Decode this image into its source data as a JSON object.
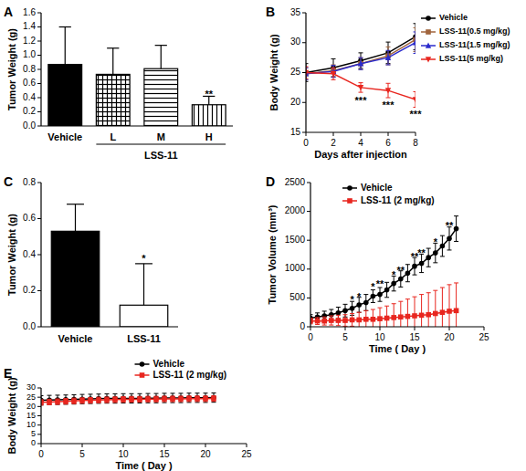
{
  "chart_data": [
    {
      "type": "bar",
      "title": "A",
      "ylabel": "Tumor Weight (g)",
      "categories": [
        "Vehicle",
        "L",
        "M",
        "H"
      ],
      "values": [
        0.87,
        0.73,
        0.81,
        0.3
      ],
      "errors": [
        0.53,
        0.37,
        0.33,
        0.12
      ],
      "colors": [
        "#000000",
        "#000000",
        "#000000",
        "#000000"
      ],
      "groups": [
        {
          "label": "LSS-11",
          "categories": [
            "L",
            "M",
            "H"
          ]
        }
      ],
      "ylim": [
        0,
        1.6
      ],
      "yticks": [
        {
          "value": 0,
          "label": "0.0"
        },
        0.2,
        0.4,
        0.6,
        0.8,
        {
          "value": 1,
          "label": "1.0"
        },
        1.2,
        1.4,
        1.6
      ],
      "annotations": [
        {
          "category": "H",
          "y": 0.47,
          "text": "**"
        }
      ],
      "grid": false
    },
    {
      "type": "line",
      "title": "B",
      "xlabel": "Days after injection",
      "ylabel": "Body Weight (g)",
      "x": [
        0,
        2,
        4,
        6,
        8
      ],
      "xlim": [
        0,
        8
      ],
      "xticks": [
        0,
        2,
        4,
        6,
        8
      ],
      "ylim": [
        15,
        35
      ],
      "yticks": [
        15,
        20,
        25,
        30,
        35
      ],
      "series": [
        {
          "name": "Vehicle",
          "color": "#000000",
          "marker": "circle",
          "values": [
            25,
            25.8,
            27,
            28.3,
            31
          ],
          "errors": [
            1.5,
            1.5,
            1.3,
            1.8,
            2.2
          ]
        },
        {
          "name": "LSS-11(0.5 mg/kg)",
          "color": "#a0643c",
          "marker": "square",
          "values": [
            24.8,
            25.3,
            26.5,
            27.8,
            30.5
          ],
          "errors": [
            1,
            1,
            1,
            1.5,
            2
          ]
        },
        {
          "name": "LSS-11(1.5 mg/kg)",
          "color": "#2b2bcc",
          "marker": "triangle",
          "values": [
            24.8,
            25.2,
            26.5,
            27.5,
            30
          ],
          "errors": [
            1,
            1,
            1,
            1.2,
            1.8
          ]
        },
        {
          "name": "LSS-11(5 mg/kg)",
          "color": "#e8261f",
          "marker": "triangle-down",
          "values": [
            25,
            24.8,
            22.5,
            22,
            20.5
          ],
          "errors": [
            1,
            1,
            0.8,
            1.2,
            1.3
          ]
        }
      ],
      "legend": "right",
      "annotations": [
        {
          "x": 4,
          "y": 20.7,
          "text": "***"
        },
        {
          "x": 6,
          "y": 19.9,
          "text": "***"
        },
        {
          "x": 8,
          "y": 18.4,
          "text": "***"
        }
      ],
      "grid": false
    },
    {
      "type": "bar",
      "title": "C",
      "ylabel": "Tumor Weight (g)",
      "categories": [
        "Vehicle",
        "LSS-11"
      ],
      "values": [
        0.53,
        0.12
      ],
      "errors": [
        0.15,
        0.23
      ],
      "colors": [
        "#000000",
        "#ffffff"
      ],
      "ylim": [
        0,
        0.8
      ],
      "yticks": [
        {
          "value": 0,
          "label": "0.0"
        },
        0.2,
        0.4,
        0.6,
        0.8
      ],
      "annotations": [
        {
          "category": "LSS-11",
          "y": 0.39,
          "text": "*"
        }
      ],
      "grid": false
    },
    {
      "type": "line",
      "title": "D",
      "xlabel": "Time ( Day )",
      "ylabel": "Tumor Volume (mm³)",
      "x": [
        0,
        1,
        2,
        3,
        4,
        5,
        6,
        7,
        8,
        9,
        10,
        11,
        12,
        13,
        14,
        15,
        16,
        17,
        18,
        19,
        20,
        21
      ],
      "xlim": [
        0,
        25
      ],
      "xticks": [
        0,
        5,
        10,
        15,
        20,
        25
      ],
      "ylim": [
        0,
        2500
      ],
      "yticks": [
        0,
        500,
        1000,
        1500,
        2000,
        2500
      ],
      "series": [
        {
          "name": "Vehicle",
          "color": "#000000",
          "marker": "circle",
          "values": [
            150,
            170,
            190,
            210,
            240,
            280,
            320,
            380,
            420,
            530,
            560,
            640,
            750,
            830,
            930,
            1050,
            1100,
            1200,
            1280,
            1400,
            1530,
            1700
          ],
          "errors": [
            60,
            70,
            80,
            90,
            100,
            110,
            120,
            130,
            140,
            110,
            120,
            130,
            130,
            140,
            150,
            150,
            160,
            160,
            170,
            180,
            200,
            220
          ]
        },
        {
          "name": "LSS-11 (2 mg/kg)",
          "color": "#e8261f",
          "marker": "square",
          "values": [
            100,
            100,
            100,
            110,
            110,
            110,
            120,
            120,
            130,
            130,
            140,
            150,
            160,
            170,
            180,
            190,
            200,
            210,
            230,
            250,
            270,
            280
          ],
          "errors": [
            50,
            60,
            70,
            80,
            90,
            100,
            110,
            130,
            150,
            170,
            190,
            210,
            240,
            270,
            300,
            330,
            360,
            380,
            400,
            430,
            460,
            480
          ]
        }
      ],
      "legend": "upper left",
      "annotations": [
        {
          "x": 6,
          "y": 500,
          "text": "*"
        },
        {
          "x": 7,
          "y": 560,
          "text": "*"
        },
        {
          "x": 9,
          "y": 720,
          "text": "*"
        },
        {
          "x": 10,
          "y": 780,
          "text": "**"
        },
        {
          "x": 12,
          "y": 930,
          "text": "*"
        },
        {
          "x": 13,
          "y": 1010,
          "text": "**"
        },
        {
          "x": 15,
          "y": 1250,
          "text": "**"
        },
        {
          "x": 16,
          "y": 1310,
          "text": "**"
        },
        {
          "x": 18,
          "y": 1500,
          "text": "*"
        },
        {
          "x": 20,
          "y": 1790,
          "text": "**"
        }
      ],
      "grid": false
    },
    {
      "type": "line",
      "title": "E",
      "xlabel": "Time ( Day )",
      "ylabel": "Body Weight (g)",
      "x": [
        0,
        1,
        2,
        3,
        4,
        5,
        6,
        7,
        8,
        9,
        10,
        11,
        12,
        13,
        14,
        15,
        16,
        17,
        18,
        19,
        20,
        21
      ],
      "xlim": [
        0,
        25
      ],
      "xticks": [
        0,
        5,
        10,
        15,
        20,
        25
      ],
      "ylim": [
        0,
        30
      ],
      "yticks": [
        0,
        5,
        10,
        15,
        20,
        25,
        30
      ],
      "series": [
        {
          "name": "Vehicle",
          "color": "#000000",
          "marker": "circle",
          "values": [
            23.3,
            23.5,
            23.6,
            23.7,
            23.8,
            24,
            24.1,
            24.2,
            24.3,
            24.3,
            24.4,
            24.4,
            24.4,
            24.5,
            24.5,
            24.6,
            24.6,
            24.6,
            24.7,
            24.7,
            24.7,
            24.8
          ],
          "errors": [
            2.5,
            2.5,
            2.5,
            2.5,
            2.5,
            2.5,
            2.5,
            2.5,
            2.5,
            2.5,
            2.5,
            2.5,
            2.5,
            2.5,
            2.5,
            2.5,
            2.5,
            2.5,
            2.5,
            2.5,
            2.5,
            2.5
          ]
        },
        {
          "name": "LSS-11 (2 mg/kg)",
          "color": "#e8261f",
          "marker": "square",
          "values": [
            22.2,
            22.4,
            22.6,
            22.8,
            23,
            23.2,
            23.3,
            23.5,
            23.6,
            23.7,
            23.8,
            23.9,
            23.9,
            24,
            24,
            24.1,
            24.1,
            24.1,
            24.2,
            24.2,
            24.2,
            24.3
          ],
          "errors": [
            1.5,
            1.5,
            1.5,
            1.5,
            1.5,
            1.5,
            1.5,
            1.5,
            1.5,
            1.5,
            1.5,
            1.5,
            1.5,
            1.5,
            1.5,
            1.5,
            1.5,
            1.5,
            1.5,
            1.5,
            1.5,
            1.5
          ]
        }
      ],
      "legend": "upper center",
      "grid": false
    }
  ]
}
